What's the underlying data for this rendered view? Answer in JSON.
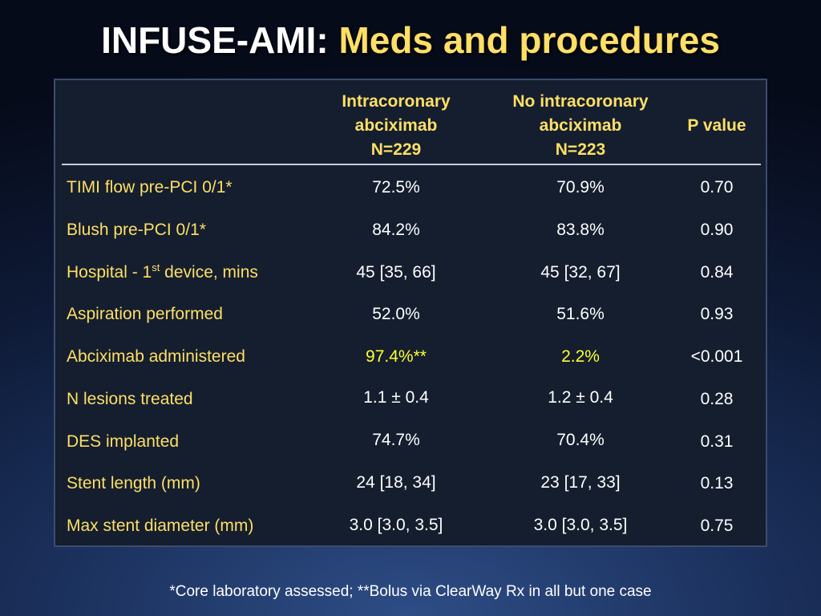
{
  "title": {
    "part1": "INFUSE-AMI:",
    "part2": "Meds and procedures"
  },
  "table": {
    "headers": [
      {
        "lines": [
          "Intracoronary",
          "abciximab",
          "N=229"
        ]
      },
      {
        "lines": [
          "No intracoronary",
          "abciximab",
          "N=223"
        ]
      },
      {
        "lines": [
          "P value"
        ]
      }
    ],
    "rows": [
      {
        "label": "TIMI flow pre-PCI 0/1*",
        "values": [
          "72.5%",
          "70.9%",
          "0.70"
        ]
      },
      {
        "label": "Blush pre-PCI 0/1*",
        "values": [
          "84.2%",
          "83.8%",
          "0.90"
        ]
      },
      {
        "label_before": "Hospital - 1",
        "label_sup": "st",
        "label_after": " device, mins",
        "values": [
          "45 [35, 66]",
          "45 [32, 67]",
          "0.84"
        ]
      },
      {
        "label": "Aspiration performed",
        "values": [
          "52.0%",
          "51.6%",
          "0.93"
        ]
      },
      {
        "label": "Abciximab administered",
        "values": [
          "97.4%**",
          "2.2%",
          "<0.001"
        ]
      },
      {
        "label": "N lesions treated",
        "values": [
          "1.1 ± 0.4",
          "1.2 ± 0.4",
          "0.28"
        ]
      },
      {
        "label": "DES implanted",
        "values": [
          "74.7%",
          "70.4%",
          "0.31"
        ]
      },
      {
        "label": "Stent length (mm)",
        "values": [
          "24 [18, 34]",
          "23 [17, 33]",
          "0.13"
        ]
      },
      {
        "label": "Max stent diameter (mm)",
        "values": [
          "3.0 [3.0, 3.5]",
          "3.0 [3.0, 3.5]",
          "0.75"
        ]
      }
    ]
  },
  "footnote": "*Core laboratory assessed; **Bolus via ClearWay Rx in all but one case",
  "colors": {
    "title_white": "#ffffff",
    "title_accent": "#ffdf66",
    "label_text": "#ffdf66",
    "highlight_value": "#ffff33",
    "table_background": "#141e2e"
  }
}
